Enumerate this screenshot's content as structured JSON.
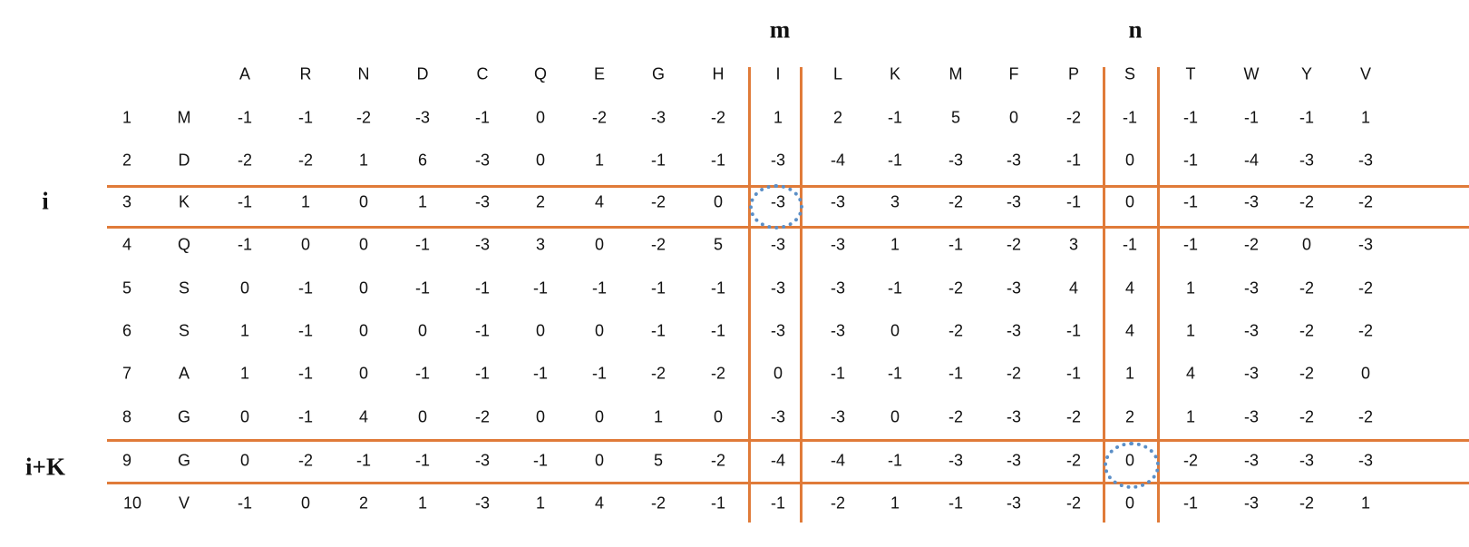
{
  "labels": {
    "m": "m",
    "n": "n",
    "i": "i",
    "i_plus_k": "i+K"
  },
  "columns": [
    "A",
    "R",
    "N",
    "D",
    "C",
    "Q",
    "E",
    "G",
    "H",
    "I",
    "L",
    "K",
    "M",
    "F",
    "P",
    "S",
    "T",
    "W",
    "Y",
    "V"
  ],
  "rows": [
    {
      "pos": "1",
      "res": "M",
      "values": [
        "-1",
        "-1",
        "-2",
        "-3",
        "-1",
        "0",
        "-2",
        "-3",
        "-2",
        "1",
        "2",
        "-1",
        "5",
        "0",
        "-2",
        "-1",
        "-1",
        "-1",
        "-1",
        "1"
      ]
    },
    {
      "pos": "2",
      "res": "D",
      "values": [
        "-2",
        "-2",
        "1",
        "6",
        "-3",
        "0",
        "1",
        "-1",
        "-1",
        "-3",
        "-4",
        "-1",
        "-3",
        "-3",
        "-1",
        "0",
        "-1",
        "-4",
        "-3",
        "-3"
      ]
    },
    {
      "pos": "3",
      "res": "K",
      "values": [
        "-1",
        "1",
        "0",
        "1",
        "-3",
        "2",
        "4",
        "-2",
        "0",
        "-3",
        "-3",
        "3",
        "-2",
        "-3",
        "-1",
        "0",
        "-1",
        "-3",
        "-2",
        "-2"
      ]
    },
    {
      "pos": "4",
      "res": "Q",
      "values": [
        "-1",
        "0",
        "0",
        "-1",
        "-3",
        "3",
        "0",
        "-2",
        "5",
        "-3",
        "-3",
        "1",
        "-1",
        "-2",
        "3",
        "-1",
        "-1",
        "-2",
        "0",
        "-3"
      ]
    },
    {
      "pos": "5",
      "res": "S",
      "values": [
        "0",
        "-1",
        "0",
        "-1",
        "-1",
        "-1",
        "-1",
        "-1",
        "-1",
        "-3",
        "-3",
        "-1",
        "-2",
        "-3",
        "4",
        "4",
        "1",
        "-3",
        "-2",
        "-2"
      ]
    },
    {
      "pos": "6",
      "res": "S",
      "values": [
        "1",
        "-1",
        "0",
        "0",
        "-1",
        "0",
        "0",
        "-1",
        "-1",
        "-3",
        "-3",
        "0",
        "-2",
        "-3",
        "-1",
        "4",
        "1",
        "-3",
        "-2",
        "-2"
      ]
    },
    {
      "pos": "7",
      "res": "A",
      "values": [
        "1",
        "-1",
        "0",
        "-1",
        "-1",
        "-1",
        "-1",
        "-2",
        "-2",
        "0",
        "-1",
        "-1",
        "-1",
        "-2",
        "-1",
        "1",
        "4",
        "-3",
        "-2",
        "0"
      ]
    },
    {
      "pos": "8",
      "res": "G",
      "values": [
        "0",
        "-1",
        "4",
        "0",
        "-2",
        "0",
        "0",
        "1",
        "0",
        "-3",
        "-3",
        "0",
        "-2",
        "-3",
        "-2",
        "2",
        "1",
        "-3",
        "-2",
        "-2"
      ]
    },
    {
      "pos": "9",
      "res": "G",
      "values": [
        "0",
        "-2",
        "-1",
        "-1",
        "-3",
        "-1",
        "0",
        "5",
        "-2",
        "-4",
        "-4",
        "-1",
        "-3",
        "-3",
        "-2",
        "0",
        "-2",
        "-3",
        "-3",
        "-3"
      ]
    },
    {
      "pos": "10",
      "res": "V",
      "values": [
        "-1",
        "0",
        "2",
        "1",
        "-3",
        "1",
        "4",
        "-2",
        "-1",
        "-1",
        "-2",
        "1",
        "-1",
        "-3",
        "-2",
        "0",
        "-1",
        "-3",
        "-2",
        "1"
      ]
    }
  ],
  "highlight": {
    "line_color": "#e07b39",
    "circle_color": "#5b8fc7",
    "columns": [
      "I",
      "S"
    ],
    "row_positions": [
      "3",
      "9"
    ]
  }
}
